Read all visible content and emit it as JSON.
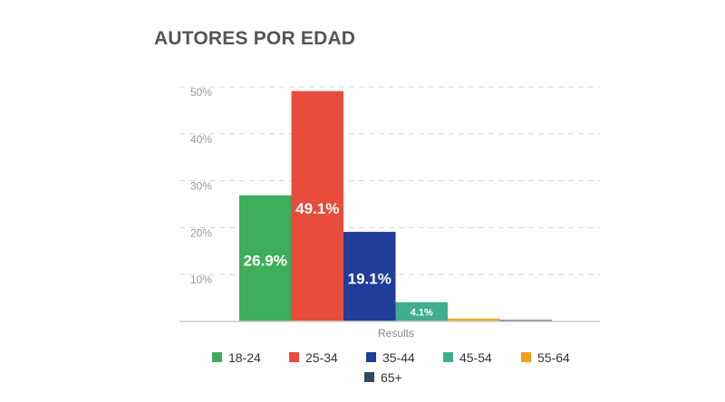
{
  "title": "AUTORES POR EDAD",
  "chart_data": {
    "type": "bar",
    "title": "AUTORES POR EDAD",
    "xlabel": "Results",
    "ylabel": "",
    "ylim": [
      0,
      50
    ],
    "yticks": [
      "10%",
      "20%",
      "30%",
      "40%",
      "50%"
    ],
    "ytick_values": [
      10,
      20,
      30,
      40,
      50
    ],
    "grid": true,
    "legend_position": "bottom",
    "series": [
      {
        "name": "18-24",
        "value": 26.9,
        "label": "26.9%",
        "color": "#3dae5c"
      },
      {
        "name": "25-34",
        "value": 49.1,
        "label": "49.1%",
        "color": "#e84c3d"
      },
      {
        "name": "35-44",
        "value": 19.1,
        "label": "19.1%",
        "color": "#1f3d99"
      },
      {
        "name": "45-54",
        "value": 4.1,
        "label": "4.1%",
        "color": "#3fae8f"
      },
      {
        "name": "55-64",
        "value": 0.6,
        "label": "",
        "color": "#f3a11b"
      },
      {
        "name": "65+",
        "value": 0.3,
        "label": "",
        "color": "#34495e"
      }
    ]
  }
}
